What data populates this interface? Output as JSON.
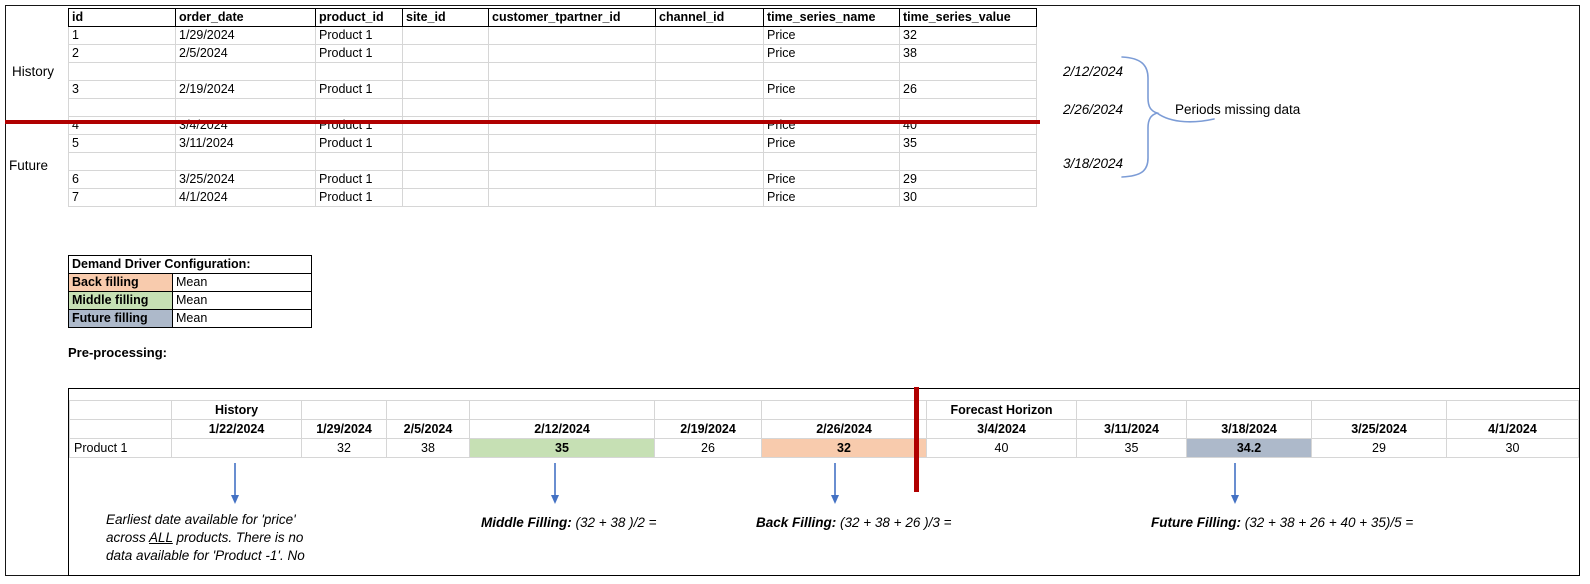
{
  "top_table": {
    "columns": [
      "id",
      "order_date",
      "product_id",
      "site_id",
      "customer_tpartner_id",
      "channel_id",
      "time_series_name",
      "time_series_value"
    ],
    "rows": [
      [
        "1",
        "1/29/2024",
        "Product 1",
        "",
        "",
        "",
        "Price",
        "32"
      ],
      [
        "2",
        "2/5/2024",
        "Product 1",
        "",
        "",
        "",
        "Price",
        "38"
      ],
      [
        "",
        "",
        "",
        "",
        "",
        "",
        "",
        ""
      ],
      [
        "3",
        "2/19/2024",
        "Product 1",
        "",
        "",
        "",
        "Price",
        "26"
      ],
      [
        "",
        "",
        "",
        "",
        "",
        "",
        "",
        ""
      ],
      [
        "4",
        "3/4/2024",
        "Product 1",
        "",
        "",
        "",
        "Price",
        "40"
      ],
      [
        "5",
        "3/11/2024",
        "Product 1",
        "",
        "",
        "",
        "Price",
        "35"
      ],
      [
        "",
        "",
        "",
        "",
        "",
        "",
        "",
        ""
      ],
      [
        "6",
        "3/25/2024",
        "Product 1",
        "",
        "",
        "",
        "Price",
        "29"
      ],
      [
        "7",
        "4/1/2024",
        "Product 1",
        "",
        "",
        "",
        "Price",
        "30"
      ]
    ]
  },
  "side_labels": {
    "history": "History",
    "future": "Future"
  },
  "missing_periods": {
    "dates": [
      "2/12/2024",
      "2/26/2024",
      "3/18/2024"
    ],
    "label": "Periods missing data"
  },
  "config_table": {
    "title": "Demand Driver Configuration:",
    "rows": [
      {
        "label": "Back filling",
        "value": "Mean",
        "fill": "back_fill"
      },
      {
        "label": "Middle filling",
        "value": "Mean",
        "fill": "middle_fill"
      },
      {
        "label": "Future filling",
        "value": "Mean",
        "fill": "future_fill"
      }
    ]
  },
  "preprocessing_label": "Pre-processing:",
  "bottom_table": {
    "row_label": "Product 1",
    "group_headers": {
      "0": "History",
      "6": "Forecast Horizon"
    },
    "dates": [
      "1/22/2024",
      "1/29/2024",
      "2/5/2024",
      "2/12/2024",
      "2/19/2024",
      "2/26/2024",
      "3/4/2024",
      "3/11/2024",
      "3/18/2024",
      "3/25/2024",
      "4/1/2024"
    ],
    "values": [
      "",
      "32",
      "38",
      "35",
      "26",
      "32",
      "40",
      "35",
      "34.2",
      "29",
      "30"
    ],
    "value_highlights": {
      "3": "middle_fill",
      "5": "back_fill",
      "8": "future_fill"
    }
  },
  "annotations": {
    "earliest": {
      "line1": "Earliest date available for 'price'",
      "line2_pre": "across ",
      "line2_u": "ALL",
      "line2_post": " products. There is no",
      "line3": "data available for 'Product -1'. No"
    },
    "middle": {
      "label": "Middle Filling:",
      "formula": " (32 + 38 )/2 ="
    },
    "back": {
      "label": "Back Filling:",
      "formula": " (32 + 38 + 26 )/3 ="
    },
    "future": {
      "label": "Future Filling:",
      "formula": " (32 + 38 + 26 + 40 + 35)/5 ="
    }
  },
  "colors": {
    "back_fill": "#F8CBAD",
    "middle_fill": "#C6E0B4",
    "future_fill": "#ADB9CA",
    "red_line": "#B00000",
    "arrow_blue": "#4472C4",
    "brace_blue": "#7C9CD6",
    "grid_line": "#D6D6D6"
  }
}
